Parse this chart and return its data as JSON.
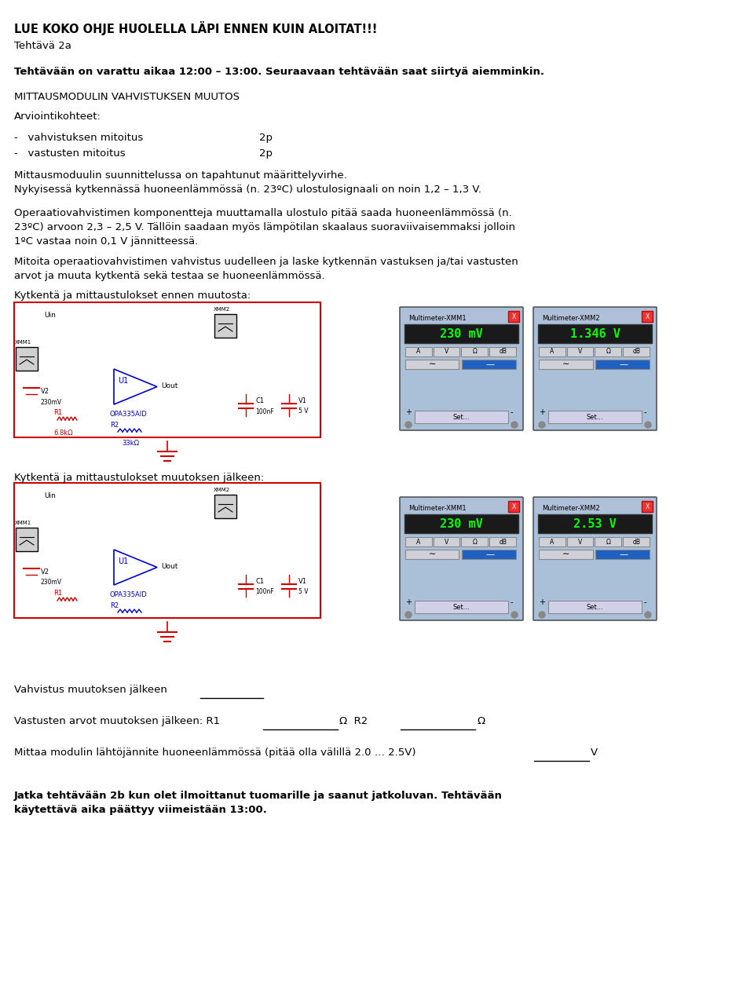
{
  "title_bold": "LUE KOKO OHJE HUOLELLA LÄPI ENNEN KUIN ALOITAT!!!",
  "subtitle": "Tehtävä 2a",
  "line1_bold": "Tehtävään on varattu aikaa 12:00 – 13:00. Seuraavaan tehtävään saat siirtyä aiemminkin.",
  "section_title": "MITTAUSMODULIN VAHVISTUKSEN MUUTOS",
  "arv_title": "Arviointikohteet:",
  "bullet1": "-   vahvistuksen mitoitus                   2p",
  "bullet2": "-   vastusten mitoitus                        2p",
  "para1": "Mittausmoduulin suunnittelussa on tapahtunut määrittelyvirhe.\nNykyisessä kytkennässä huoneenlämmössä (n. 23ºC) ulostulosignaali on noin 1,2 – 1,3 V.",
  "para2": "Operaatiovahvistimen komponentteja muuttamalla ulostulo pitää saada huoneenlämmössä (n.\n23ºC) arvoon 2,3 – 2,5 V. Tällöin saadaan myös lämpötilan skaalaus suoraviivaisemmaksi jolloin\n1ºC vastaa noin 0,1 V jännitteessä.",
  "para3": "Mitoita operaatiovahvistimen vahvistus uudelleen ja laske kytkennän vastuksen ja/tai vastusten\narvot ja muuta kytkentä sekä testaa se huoneenlämmössä.",
  "circuit1_label": "Kytkentä ja mittaustulokset ennen muutosta:",
  "circuit2_label": "Kytkentä ja mittaustulokset muutoksen jälkeen:",
  "mm1_before": "230 mV",
  "mm2_before": "1.346 V",
  "mm1_after": "230 mV",
  "mm2_after": "2.53 V",
  "mm1_title": "Multimeter-XMM1",
  "mm2_title": "Multimeter-XMM2",
  "answer1": "Vahvistus muutoksen jälkeen",
  "answer2_pre": "Vastusten arvot muutoksen jälkeen: R1",
  "answer2_mid": "Ω  R2",
  "answer2_end": "Ω",
  "answer3": "Mittaa modulin lähtöjännite huoneenlämmössä (pitää olla välillä 2.0 … 2.5V)",
  "answer3_end": "V",
  "final_bold": "Jatka tehtävään 2b kun olet ilmoittanut tuomarille ja saanut jatkoluvan. Tehtävään\nkäytettävä aika päättyy viimeistään 13:00.",
  "bg_color": "#ffffff",
  "text_color": "#000000",
  "circuit_red": "#cc0000",
  "circuit_blue": "#0000cc",
  "meter_bg": "#aac0d8",
  "meter_display": "#1a1a1a",
  "meter_display_text": "#00ff00"
}
